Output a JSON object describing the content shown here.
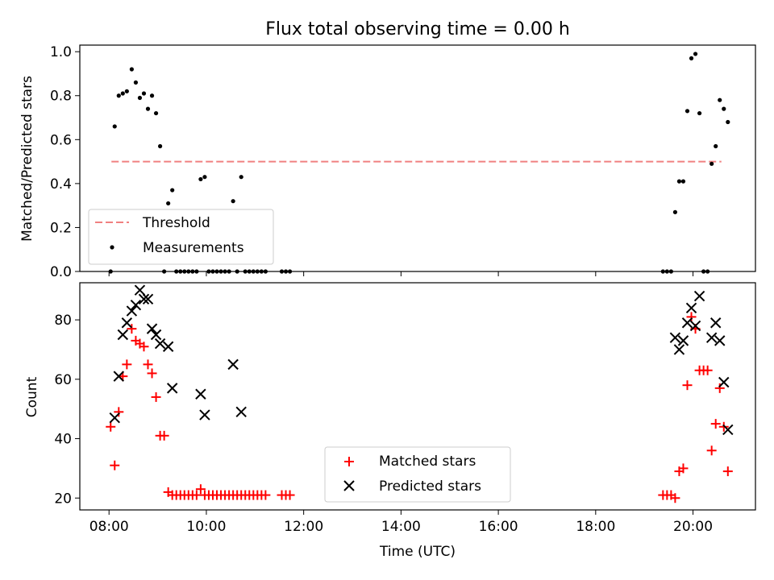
{
  "chart_data": [
    {
      "type": "scatter",
      "title": "Flux total observing time = 0.00 h",
      "xlabel": "",
      "ylabel": "Matched/Predicted stars",
      "xlim": [
        "07:24",
        "21:17"
      ],
      "ylim": [
        0,
        1.03
      ],
      "xticks": [
        "08:00",
        "10:00",
        "12:00",
        "14:00",
        "16:00",
        "18:00",
        "20:00"
      ],
      "xtick_labels_visible": false,
      "yticks": [
        0.0,
        0.2,
        0.4,
        0.6,
        0.8,
        1.0
      ],
      "ytick_labels": [
        "0.0",
        "0.2",
        "0.4",
        "0.6",
        "0.8",
        "1.0"
      ],
      "legend": {
        "placement": "lower-left",
        "entries": [
          "Threshold",
          "Measurements"
        ]
      },
      "grid": false,
      "threshold": {
        "name": "Threshold",
        "y": 0.5,
        "x_start": "08:03",
        "x_end": "20:35",
        "color": "#f08080",
        "style": "dashed"
      },
      "series": [
        {
          "name": "Measurements",
          "marker": "dot",
          "color": "#000000",
          "points": [
            [
              "08:02",
              0.0
            ],
            [
              "08:07",
              0.66
            ],
            [
              "08:12",
              0.8
            ],
            [
              "08:17",
              0.81
            ],
            [
              "08:22",
              0.82
            ],
            [
              "08:28",
              0.92
            ],
            [
              "08:33",
              0.86
            ],
            [
              "08:38",
              0.79
            ],
            [
              "08:43",
              0.81
            ],
            [
              "08:48",
              0.74
            ],
            [
              "08:53",
              0.8
            ],
            [
              "08:58",
              0.72
            ],
            [
              "09:03",
              0.57
            ],
            [
              "09:08",
              0.0
            ],
            [
              "09:13",
              0.31
            ],
            [
              "09:18",
              0.37
            ],
            [
              "09:23",
              0.0
            ],
            [
              "09:28",
              0.0
            ],
            [
              "09:33",
              0.0
            ],
            [
              "09:38",
              0.0
            ],
            [
              "09:43",
              0.0
            ],
            [
              "09:48",
              0.0
            ],
            [
              "09:53",
              0.42
            ],
            [
              "09:58",
              0.43
            ],
            [
              "10:03",
              0.0
            ],
            [
              "10:08",
              0.0
            ],
            [
              "10:13",
              0.0
            ],
            [
              "10:18",
              0.0
            ],
            [
              "10:23",
              0.0
            ],
            [
              "10:28",
              0.0
            ],
            [
              "10:33",
              0.32
            ],
            [
              "10:38",
              0.0
            ],
            [
              "10:43",
              0.43
            ],
            [
              "10:48",
              0.0
            ],
            [
              "10:53",
              0.0
            ],
            [
              "10:58",
              0.0
            ],
            [
              "11:03",
              0.0
            ],
            [
              "11:08",
              0.0
            ],
            [
              "11:13",
              0.0
            ],
            [
              "11:33",
              0.0
            ],
            [
              "11:38",
              0.0
            ],
            [
              "11:43",
              0.0
            ],
            [
              "19:23",
              0.0
            ],
            [
              "19:28",
              0.0
            ],
            [
              "19:33",
              0.0
            ],
            [
              "19:38",
              0.27
            ],
            [
              "19:43",
              0.41
            ],
            [
              "19:48",
              0.41
            ],
            [
              "19:53",
              0.73
            ],
            [
              "19:58",
              0.97
            ],
            [
              "20:03",
              0.99
            ],
            [
              "20:08",
              0.72
            ],
            [
              "20:13",
              0.0
            ],
            [
              "20:18",
              0.0
            ],
            [
              "20:23",
              0.49
            ],
            [
              "20:28",
              0.57
            ],
            [
              "20:33",
              0.78
            ],
            [
              "20:38",
              0.74
            ],
            [
              "20:43",
              0.68
            ]
          ]
        }
      ]
    },
    {
      "type": "scatter",
      "title": "",
      "xlabel": "Time (UTC)",
      "ylabel": "Count",
      "xlim": [
        "07:24",
        "21:17"
      ],
      "ylim": [
        16,
        92.5
      ],
      "xticks": [
        "08:00",
        "10:00",
        "12:00",
        "14:00",
        "16:00",
        "18:00",
        "20:00"
      ],
      "xtick_labels": [
        "08:00",
        "10:00",
        "12:00",
        "14:00",
        "16:00",
        "18:00",
        "20:00"
      ],
      "yticks": [
        20,
        40,
        60,
        80
      ],
      "ytick_labels": [
        "20",
        "40",
        "60",
        "80"
      ],
      "legend": {
        "placement": "lower-center",
        "entries": [
          "Matched stars",
          "Predicted stars"
        ]
      },
      "grid": false,
      "series": [
        {
          "name": "Matched stars",
          "marker": "plus",
          "color": "#ff0000",
          "points": [
            [
              "08:02",
              44
            ],
            [
              "08:07",
              31
            ],
            [
              "08:12",
              49
            ],
            [
              "08:17",
              61
            ],
            [
              "08:22",
              65
            ],
            [
              "08:28",
              77
            ],
            [
              "08:33",
              73
            ],
            [
              "08:38",
              72
            ],
            [
              "08:43",
              71
            ],
            [
              "08:48",
              65
            ],
            [
              "08:53",
              62
            ],
            [
              "08:58",
              54
            ],
            [
              "09:03",
              41
            ],
            [
              "09:08",
              41
            ],
            [
              "09:13",
              22
            ],
            [
              "09:18",
              21
            ],
            [
              "09:23",
              21
            ],
            [
              "09:28",
              21
            ],
            [
              "09:33",
              21
            ],
            [
              "09:38",
              21
            ],
            [
              "09:43",
              21
            ],
            [
              "09:48",
              21
            ],
            [
              "09:53",
              23
            ],
            [
              "09:58",
              21
            ],
            [
              "10:03",
              21
            ],
            [
              "10:08",
              21
            ],
            [
              "10:13",
              21
            ],
            [
              "10:18",
              21
            ],
            [
              "10:23",
              21
            ],
            [
              "10:28",
              21
            ],
            [
              "10:33",
              21
            ],
            [
              "10:38",
              21
            ],
            [
              "10:43",
              21
            ],
            [
              "10:48",
              21
            ],
            [
              "10:53",
              21
            ],
            [
              "10:58",
              21
            ],
            [
              "11:03",
              21
            ],
            [
              "11:08",
              21
            ],
            [
              "11:13",
              21
            ],
            [
              "11:33",
              21
            ],
            [
              "11:38",
              21
            ],
            [
              "11:43",
              21
            ],
            [
              "19:23",
              21
            ],
            [
              "19:28",
              21
            ],
            [
              "19:33",
              21
            ],
            [
              "19:38",
              20
            ],
            [
              "19:43",
              29
            ],
            [
              "19:48",
              30
            ],
            [
              "19:53",
              58
            ],
            [
              "19:58",
              81
            ],
            [
              "20:03",
              77
            ],
            [
              "20:08",
              63
            ],
            [
              "20:13",
              63
            ],
            [
              "20:18",
              63
            ],
            [
              "20:23",
              36
            ],
            [
              "20:28",
              45
            ],
            [
              "20:33",
              57
            ],
            [
              "20:38",
              44
            ],
            [
              "20:43",
              29
            ]
          ]
        },
        {
          "name": "Predicted stars",
          "marker": "x",
          "color": "#000000",
          "points": [
            [
              "08:07",
              47
            ],
            [
              "08:12",
              61
            ],
            [
              "08:17",
              75
            ],
            [
              "08:22",
              79
            ],
            [
              "08:28",
              83
            ],
            [
              "08:33",
              85
            ],
            [
              "08:38",
              90
            ],
            [
              "08:43",
              87
            ],
            [
              "08:48",
              87
            ],
            [
              "08:53",
              77
            ],
            [
              "08:58",
              75
            ],
            [
              "09:03",
              72
            ],
            [
              "09:13",
              71
            ],
            [
              "09:18",
              57
            ],
            [
              "09:53",
              55
            ],
            [
              "09:58",
              48
            ],
            [
              "10:33",
              65
            ],
            [
              "10:43",
              49
            ],
            [
              "19:38",
              74
            ],
            [
              "19:43",
              70
            ],
            [
              "19:48",
              73
            ],
            [
              "19:53",
              79
            ],
            [
              "19:58",
              84
            ],
            [
              "20:03",
              78
            ],
            [
              "20:08",
              88
            ],
            [
              "20:23",
              74
            ],
            [
              "20:28",
              79
            ],
            [
              "20:33",
              73
            ],
            [
              "20:38",
              59
            ],
            [
              "20:43",
              43
            ]
          ]
        }
      ]
    }
  ]
}
